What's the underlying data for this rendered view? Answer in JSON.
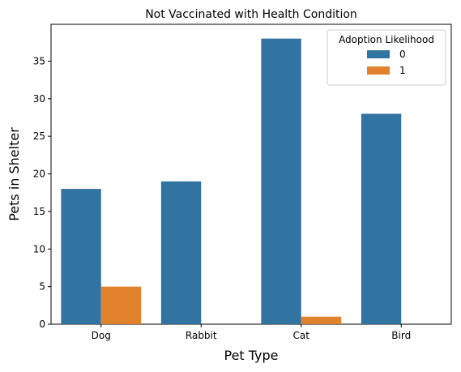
{
  "chart_data": {
    "type": "bar",
    "title": "Not Vaccinated with Health Condition",
    "xlabel": "Pet Type",
    "ylabel": "Pets in Shelter",
    "categories": [
      "Dog",
      "Rabbit",
      "Cat",
      "Bird"
    ],
    "series": [
      {
        "name": "0",
        "values": [
          18,
          19,
          38,
          28
        ],
        "color": "#3274a1"
      },
      {
        "name": "1",
        "values": [
          5,
          0,
          1,
          0
        ],
        "color": "#e1812c"
      }
    ],
    "ylim": [
      0,
      39.9
    ],
    "yticks": [
      0,
      5,
      10,
      15,
      20,
      25,
      30,
      35
    ],
    "grid": false,
    "legend": {
      "title": "Adoption Likelihood",
      "position": "top-right"
    }
  }
}
